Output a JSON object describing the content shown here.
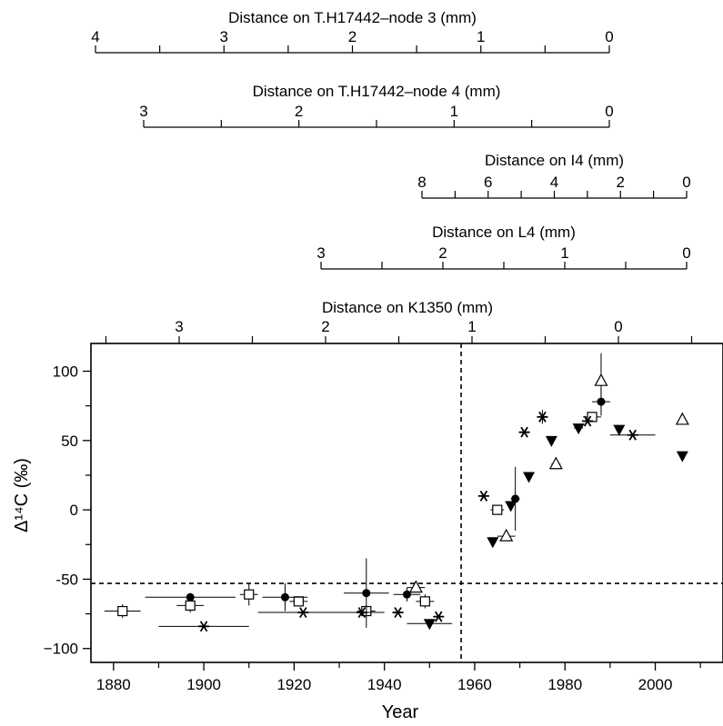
{
  "chart_data": {
    "type": "scatter",
    "xlabel": "Year",
    "ylabel": "Δ¹⁴C (‰)",
    "xlim": [
      1875,
      2015
    ],
    "ylim": [
      -110,
      120
    ],
    "xticks": [
      1880,
      1900,
      1920,
      1940,
      1960,
      1980,
      2000
    ],
    "yticks": [
      100,
      50,
      0,
      -50,
      -100
    ],
    "y_label_ticks": [
      "100",
      "50",
      "0",
      "-50",
      "−100"
    ],
    "reference_lines": {
      "vertical_year": 1957,
      "horizontal_d14c": -53
    },
    "distance_scales": [
      {
        "title": "Distance on T.H17442–node 3 (mm)",
        "labels": [
          "4",
          "3",
          "2",
          "1",
          "0"
        ]
      },
      {
        "title": "Distance on T.H17442–node 4 (mm)",
        "labels": [
          "3",
          "2",
          "1",
          "0"
        ]
      },
      {
        "title": "Distance on I4 (mm)",
        "labels": [
          "8",
          "6",
          "4",
          "2",
          "0"
        ]
      },
      {
        "title": "Distance on L4 (mm)",
        "labels": [
          "3",
          "2",
          "1",
          "0"
        ]
      },
      {
        "title": "Distance on K1350 (mm)",
        "labels": [
          "3",
          "2",
          "1",
          "0"
        ]
      }
    ],
    "series": [
      {
        "marker": "open-square",
        "points": [
          {
            "x": 1882,
            "y": -73,
            "xerr": 4,
            "yerr": 5
          },
          {
            "x": 1897,
            "y": -69,
            "xerr": 3,
            "yerr": 5
          },
          {
            "x": 1910,
            "y": -61,
            "xerr": 2,
            "yerr": 8
          },
          {
            "x": 1921,
            "y": -66,
            "xerr": 2,
            "yerr": 3
          },
          {
            "x": 1936,
            "y": -73,
            "xerr": 2,
            "yerr": 4
          },
          {
            "x": 1949,
            "y": -66,
            "xerr": 2,
            "yerr": 5
          },
          {
            "x": 1965,
            "y": 0,
            "xerr": 1.5,
            "yerr": 2
          },
          {
            "x": 1986,
            "y": 67,
            "xerr": 2,
            "yerr": 3
          }
        ]
      },
      {
        "marker": "filled-circle",
        "points": [
          {
            "x": 1897,
            "y": -63,
            "xerr": 10,
            "yerr": 3
          },
          {
            "x": 1918,
            "y": -63,
            "xerr": 5,
            "yerr": 10
          },
          {
            "x": 1936,
            "y": -60,
            "xerr": 5,
            "yerr": 25
          },
          {
            "x": 1945,
            "y": -61,
            "xerr": 3,
            "yerr": 5
          },
          {
            "x": 1969,
            "y": 8,
            "xerr": 1,
            "yerr": 23
          },
          {
            "x": 1988,
            "y": 78,
            "xerr": 2,
            "yerr": 10
          }
        ]
      },
      {
        "marker": "asterisk",
        "points": [
          {
            "x": 1900,
            "y": -84,
            "xerr": 10
          },
          {
            "x": 1922,
            "y": -74,
            "xerr": 10
          },
          {
            "x": 1935,
            "y": -74,
            "xerr": 5
          },
          {
            "x": 1943,
            "y": -74,
            "xerr": 1
          },
          {
            "x": 1952,
            "y": -77,
            "xerr": 1
          },
          {
            "x": 1962,
            "y": 10,
            "xerr": 0
          },
          {
            "x": 1971,
            "y": 56,
            "xerr": 0
          },
          {
            "x": 1975,
            "y": 67,
            "xerr": 0,
            "yerr": 5
          },
          {
            "x": 1985,
            "y": 64,
            "xerr": 1
          },
          {
            "x": 1995,
            "y": 54,
            "xerr": 5
          }
        ]
      },
      {
        "marker": "open-triangle",
        "points": [
          {
            "x": 1947,
            "y": -56,
            "xerr": 2
          },
          {
            "x": 1967,
            "y": -19,
            "xerr": 2
          },
          {
            "x": 1978,
            "y": 33,
            "xerr": 1
          },
          {
            "x": 1988,
            "y": 93,
            "xerr": 0,
            "yerr": 20
          },
          {
            "x": 2006,
            "y": 65,
            "xerr": 0
          }
        ]
      },
      {
        "marker": "filled-triangle-down",
        "points": [
          {
            "x": 1950,
            "y": -82,
            "xerr": 5
          },
          {
            "x": 1964,
            "y": -23,
            "xerr": 0
          },
          {
            "x": 1968,
            "y": 3,
            "xerr": 0
          },
          {
            "x": 1972,
            "y": 24,
            "xerr": 0
          },
          {
            "x": 1977,
            "y": 50,
            "xerr": 0
          },
          {
            "x": 1983,
            "y": 59,
            "xerr": 1
          },
          {
            "x": 1992,
            "y": 58,
            "xerr": 0
          },
          {
            "x": 2006,
            "y": 39,
            "xerr": 0
          }
        ]
      }
    ]
  }
}
